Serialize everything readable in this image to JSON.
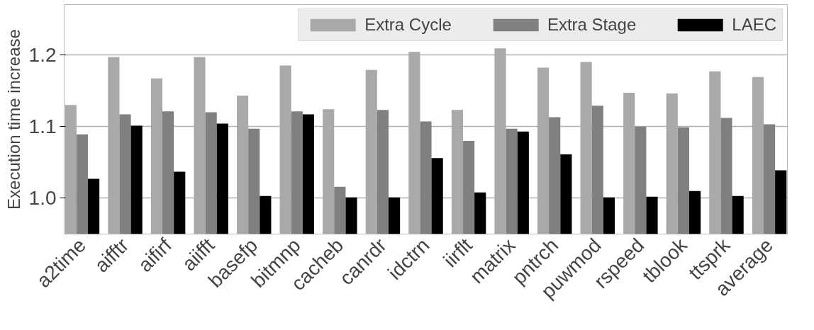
{
  "chart_data": {
    "type": "bar",
    "ylabel": "Execution time increase",
    "categories": [
      "a2time",
      "aifftr",
      "aifirf",
      "aiifft",
      "basefp",
      "bitmnp",
      "cacheb",
      "canrdr",
      "idctrn",
      "iirflt",
      "matrix",
      "pntrch",
      "puwmod",
      "rspeed",
      "tblook",
      "ttsprk",
      "average"
    ],
    "series": [
      {
        "name": "Extra Cycle",
        "color": "#a9a9a9",
        "values": [
          1.13,
          1.197,
          1.167,
          1.197,
          1.143,
          1.185,
          1.124,
          1.179,
          1.204,
          1.123,
          1.209,
          1.182,
          1.19,
          1.147,
          1.146,
          1.177,
          1.169
        ]
      },
      {
        "name": "Extra Stage",
        "color": "#808080",
        "values": [
          1.089,
          1.117,
          1.121,
          1.12,
          1.097,
          1.121,
          1.016,
          1.123,
          1.107,
          1.08,
          1.097,
          1.113,
          1.129,
          1.1,
          1.099,
          1.112,
          1.103
        ]
      },
      {
        "name": "LAEC",
        "color": "#000000",
        "values": [
          1.027,
          1.101,
          1.037,
          1.104,
          1.003,
          1.117,
          1.001,
          1.001,
          1.056,
          1.008,
          1.093,
          1.061,
          1.001,
          1.002,
          1.01,
          1.003,
          1.039
        ]
      }
    ],
    "ylim": [
      0.95,
      1.27
    ],
    "yticks": [
      {
        "value": 1.0,
        "label": "1.0"
      },
      {
        "value": 1.1,
        "label": "1.1"
      },
      {
        "value": 1.2,
        "label": "1.2"
      }
    ],
    "grid": "y",
    "legend": "top right"
  }
}
